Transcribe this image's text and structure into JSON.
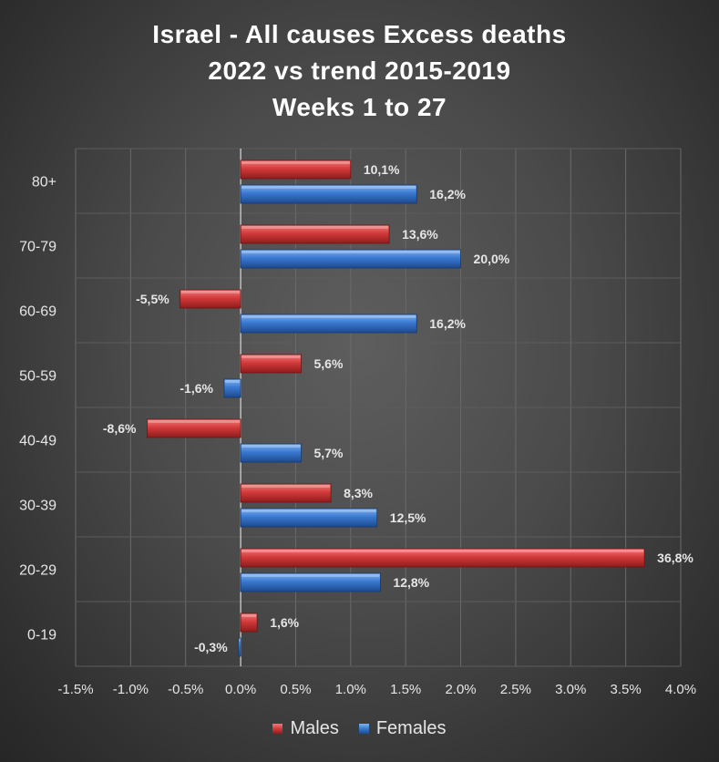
{
  "chart_data": {
    "type": "bar",
    "orientation": "horizontal",
    "title_lines": [
      "Israel - All causes Excess deaths",
      "2022 vs trend 2015-2019",
      "Weeks 1 to 27"
    ],
    "categories": [
      "80+",
      "70-79",
      "60-69",
      "50-59",
      "40-49",
      "30-39",
      "20-29",
      "0-19"
    ],
    "series": [
      {
        "name": "Males",
        "color": "#d33a3a",
        "values": [
          1.0,
          1.35,
          -0.55,
          0.55,
          -0.85,
          0.82,
          3.67,
          0.15
        ],
        "labels": [
          "10,1%",
          "13,6%",
          "-5,5%",
          "5,6%",
          "-8,6%",
          "8,3%",
          "36,8%",
          "1,6%"
        ]
      },
      {
        "name": "Females",
        "color": "#3a78d0",
        "values": [
          1.6,
          2.0,
          1.6,
          -0.15,
          0.55,
          1.24,
          1.27,
          -0.02
        ],
        "labels": [
          "16,2%",
          "20,0%",
          "16,2%",
          "-1,6%",
          "5,7%",
          "12,5%",
          "12,8%",
          "-0,3%"
        ]
      }
    ],
    "x_ticks": [
      "-1.5%",
      "-1.0%",
      "-0.5%",
      "0.0%",
      "0.5%",
      "1.0%",
      "1.5%",
      "2.0%",
      "2.5%",
      "3.0%",
      "3.5%",
      "4.0%"
    ],
    "x_tick_values": [
      -1.5,
      -1.0,
      -0.5,
      0.0,
      0.5,
      1.0,
      1.5,
      2.0,
      2.5,
      3.0,
      3.5,
      4.0
    ],
    "xlim": [
      -1.5,
      4.0
    ],
    "grid": true,
    "legend_position": "bottom"
  },
  "legend": {
    "males_label": "Males",
    "females_label": "Females"
  }
}
